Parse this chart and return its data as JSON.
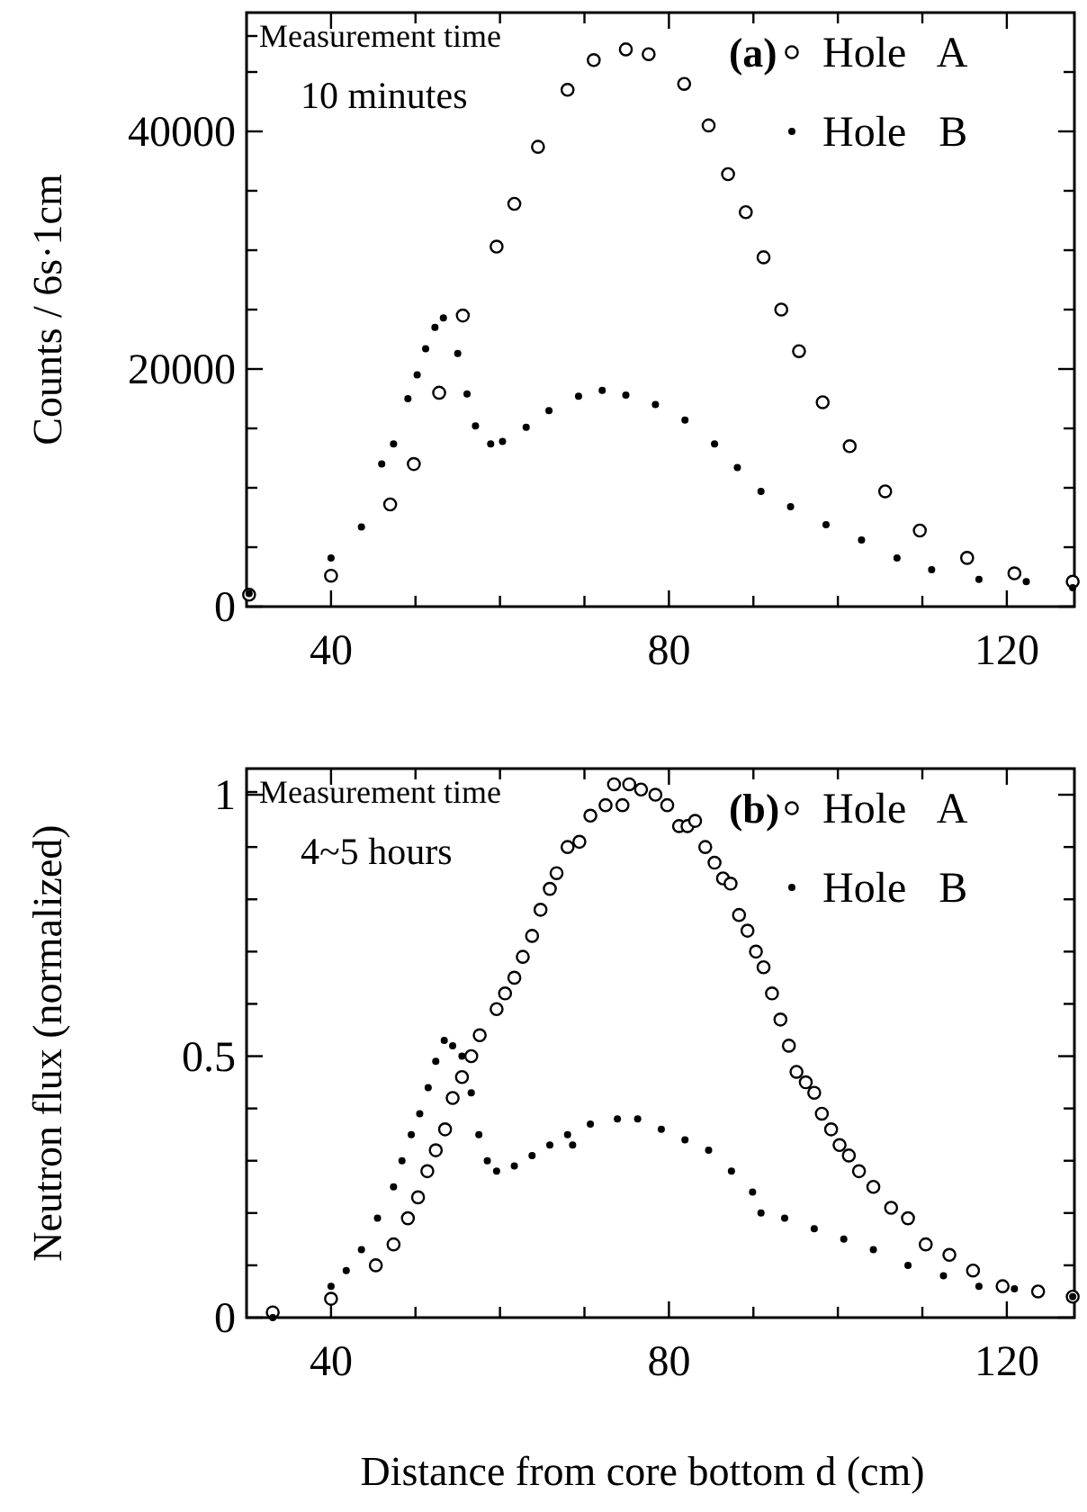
{
  "chart_data": [
    {
      "type": "scatter",
      "ylabel": "Counts / 6s·1cm",
      "annotations": [
        "Measurement time",
        "10 minutes",
        "(a)"
      ],
      "legend": "top right",
      "marker": "circle",
      "xlim": [
        30,
        128
      ],
      "ylim": [
        0,
        50000
      ],
      "xticks": [
        40,
        {
          "value": 50,
          "label": null
        },
        {
          "value": 60,
          "label": null
        },
        {
          "value": 70,
          "label": null
        },
        80,
        {
          "value": 90,
          "label": null
        },
        {
          "value": 100,
          "label": null
        },
        {
          "value": 110,
          "label": null
        },
        120
      ],
      "yticks": [
        0,
        {
          "value": 5000,
          "label": null
        },
        {
          "value": 10000,
          "label": null
        },
        {
          "value": 15000,
          "label": null
        },
        20000,
        {
          "value": 25000,
          "label": null
        },
        {
          "value": 30000,
          "label": null
        },
        {
          "value": 35000,
          "label": null
        },
        40000,
        {
          "value": 45000,
          "label": null
        }
      ],
      "series": [
        {
          "name": "Hole   A",
          "color": "#000000",
          "x": [
            30.3,
            40,
            47,
            49.8,
            52.8,
            55.6,
            59.6,
            61.7,
            64.5,
            68,
            71.1,
            74.9,
            77.6,
            81.8,
            84.7,
            87,
            89.1,
            91.2,
            93.3,
            95.4,
            98.2,
            101.4,
            105.6,
            109.7,
            115.3,
            120.9,
            127.8
          ],
          "values": [
            1000,
            2600,
            8600,
            12000,
            18000,
            24500,
            30300,
            33900,
            38700,
            43500,
            46000,
            46900,
            46500,
            44000,
            40500,
            36400,
            33200,
            29400,
            25000,
            21500,
            17200,
            13500,
            9700,
            6400,
            4100,
            2800,
            2100
          ]
        },
        {
          "name": "Hole   B",
          "color": "#000000",
          "x": [
            30.3,
            40,
            43.6,
            46,
            47.4,
            49.1,
            50.2,
            51.2,
            52.3,
            53.3,
            55,
            56.1,
            57.1,
            58.9,
            60.3,
            63.1,
            65.8,
            69.3,
            72.1,
            74.9,
            78.4,
            81.9,
            85.4,
            88.1,
            90.9,
            94.4,
            98.6,
            102.8,
            107,
            111.1,
            116.7,
            122.3,
            127.8
          ],
          "values": [
            1100,
            4100,
            6700,
            12000,
            13700,
            17500,
            19500,
            21700,
            23500,
            24300,
            21300,
            17900,
            15200,
            13700,
            13900,
            15100,
            16500,
            17700,
            18200,
            17800,
            17000,
            15700,
            13700,
            11700,
            9700,
            8400,
            6900,
            5600,
            4100,
            3100,
            2300,
            2100,
            1600
          ]
        }
      ]
    },
    {
      "type": "scatter",
      "ylabel": "Neutron flux (normalized)",
      "xlabel": "Distance from core bottom d (cm)",
      "annotations": [
        "Measurement time",
        "4~5 hours",
        "(b)"
      ],
      "legend": "top right",
      "marker": "circle",
      "xlim": [
        30,
        128
      ],
      "ylim": [
        0,
        1.05
      ],
      "xticks": [
        40,
        {
          "value": 50,
          "label": null
        },
        {
          "value": 60,
          "label": null
        },
        {
          "value": 70,
          "label": null
        },
        80,
        {
          "value": 90,
          "label": null
        },
        {
          "value": 100,
          "label": null
        },
        {
          "value": 110,
          "label": null
        },
        120
      ],
      "yticks": [
        0,
        {
          "value": 0.1,
          "label": null
        },
        {
          "value": 0.2,
          "label": null
        },
        {
          "value": 0.3,
          "label": null
        },
        {
          "value": 0.4,
          "label": null
        },
        0.5,
        {
          "value": 0.6,
          "label": null
        },
        {
          "value": 0.7,
          "label": null
        },
        {
          "value": 0.8,
          "label": null
        },
        {
          "value": 0.9,
          "label": null
        },
        1
      ],
      "series": [
        {
          "name": "Hole   A",
          "color": "#000000",
          "x": [
            33.1,
            40,
            45.3,
            47.4,
            49.1,
            50.3,
            51.4,
            52.4,
            53.5,
            54.4,
            55.5,
            56.6,
            57.6,
            59.6,
            60.6,
            61.7,
            62.7,
            63.8,
            64.8,
            65.9,
            66.7,
            68,
            69.4,
            70.7,
            72.5,
            73.5,
            74.5,
            75.3,
            76.7,
            78.4,
            79.8,
            81.2,
            82.2,
            83.1,
            84.3,
            85.4,
            86.4,
            87.3,
            88.3,
            89.3,
            90.3,
            91.2,
            92.2,
            93.2,
            94.2,
            95.1,
            96.2,
            97.2,
            98.1,
            99.2,
            100.2,
            101.3,
            102.5,
            104.2,
            106.3,
            108.3,
            110.4,
            113.2,
            116,
            119.5,
            123.7,
            127.8
          ],
          "values": [
            0.01,
            0.036,
            0.1,
            0.14,
            0.19,
            0.23,
            0.28,
            0.32,
            0.36,
            0.42,
            0.46,
            0.5,
            0.54,
            0.59,
            0.62,
            0.65,
            0.69,
            0.73,
            0.78,
            0.82,
            0.85,
            0.9,
            0.91,
            0.96,
            0.98,
            1.02,
            0.98,
            1.02,
            1.01,
            1,
            0.98,
            0.94,
            0.94,
            0.95,
            0.9,
            0.87,
            0.84,
            0.83,
            0.77,
            0.74,
            0.7,
            0.67,
            0.62,
            0.57,
            0.52,
            0.47,
            0.45,
            0.43,
            0.39,
            0.36,
            0.33,
            0.31,
            0.28,
            0.25,
            0.21,
            0.19,
            0.14,
            0.12,
            0.09,
            0.06,
            0.05,
            0.04
          ]
        },
        {
          "name": "Hole   B",
          "color": "#000000",
          "x": [
            33.1,
            40,
            41.8,
            43.6,
            45.5,
            47.4,
            48.4,
            49.5,
            50.5,
            51.5,
            52.4,
            53.4,
            54.4,
            55.5,
            56.6,
            57.5,
            58.5,
            59.6,
            61.7,
            63.8,
            65.9,
            68,
            68.6,
            70.7,
            73.9,
            76.3,
            79.1,
            81.9,
            84.7,
            87.4,
            89.9,
            90.9,
            93.7,
            97.2,
            100.7,
            104.2,
            108.3,
            112.5,
            116.7,
            120.9,
            127.8
          ],
          "values": [
            0,
            0.06,
            0.09,
            0.13,
            0.19,
            0.25,
            0.3,
            0.35,
            0.39,
            0.44,
            0.49,
            0.53,
            0.52,
            0.5,
            0.43,
            0.35,
            0.3,
            0.28,
            0.29,
            0.31,
            0.33,
            0.35,
            0.33,
            0.37,
            0.38,
            0.38,
            0.36,
            0.34,
            0.32,
            0.28,
            0.24,
            0.2,
            0.19,
            0.17,
            0.15,
            0.13,
            0.1,
            0.08,
            0.06,
            0.055,
            0.04
          ]
        }
      ]
    }
  ]
}
